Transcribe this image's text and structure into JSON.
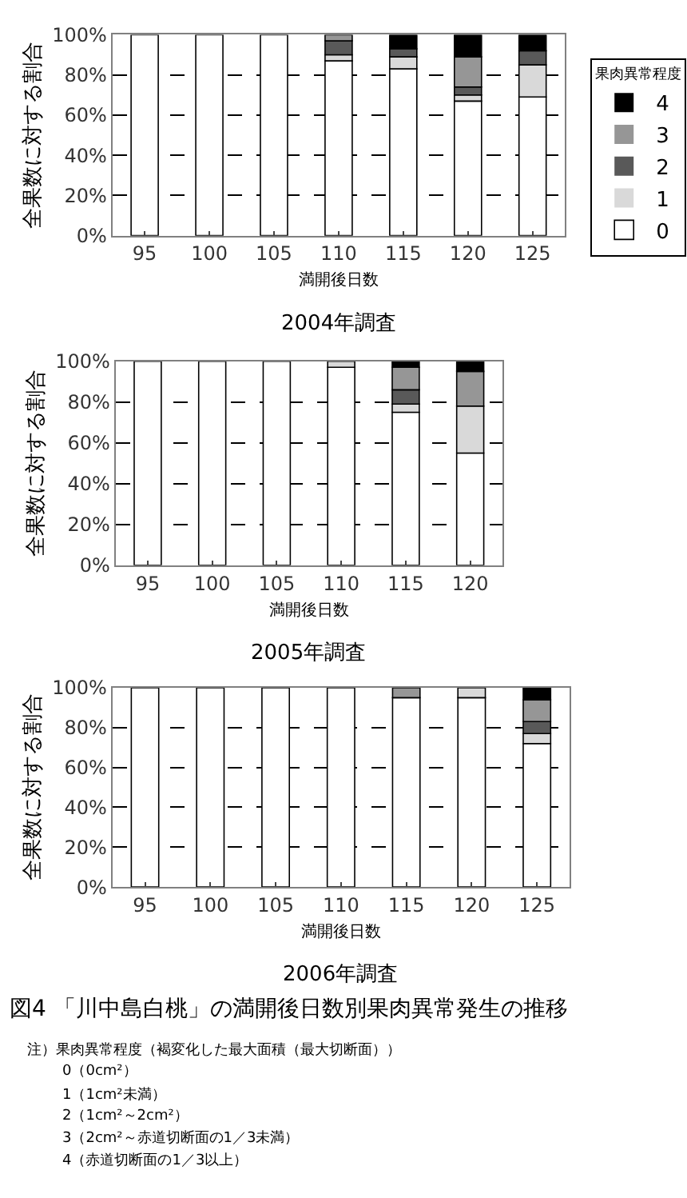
{
  "chart_data": [
    {
      "type": "bar",
      "title": "2004年調査",
      "xlabel": "満開後日数",
      "ylabel": "全果数に対する割合",
      "legend_title": "果肉異常程度",
      "legend": "right",
      "stacked": true,
      "grid": "y",
      "categories": [
        "95",
        "100",
        "105",
        "110",
        "115",
        "120",
        "125"
      ],
      "series": [
        {
          "name": "0",
          "color": "#ffffff",
          "values": [
            100,
            100,
            100,
            87,
            83,
            67,
            69
          ]
        },
        {
          "name": "1",
          "color": "#d9d9d9",
          "values": [
            0,
            0,
            0,
            3,
            6,
            3,
            16
          ]
        },
        {
          "name": "2",
          "color": "#595959",
          "values": [
            0,
            0,
            0,
            7,
            4,
            4,
            7
          ]
        },
        {
          "name": "3",
          "color": "#969696",
          "values": [
            0,
            0,
            0,
            3,
            0,
            15,
            0
          ]
        },
        {
          "name": "4",
          "color": "#000000",
          "values": [
            0,
            0,
            0,
            0,
            7,
            11,
            8
          ]
        }
      ],
      "ylim": [
        0,
        100
      ],
      "yticks": [
        {
          "value": 0,
          "label": "0%"
        },
        {
          "value": 20,
          "label": "20%"
        },
        {
          "value": 40,
          "label": "40%"
        },
        {
          "value": 60,
          "label": "60%"
        },
        {
          "value": 80,
          "label": "80%"
        },
        {
          "value": 100,
          "label": "100%"
        }
      ]
    },
    {
      "type": "bar",
      "title": "2005年調査",
      "xlabel": "満開後日数",
      "ylabel": "全果数に対する割合",
      "stacked": true,
      "grid": "y",
      "categories": [
        "95",
        "100",
        "105",
        "110",
        "115",
        "120"
      ],
      "series": [
        {
          "color": "#ffffff",
          "values": [
            100,
            100,
            100,
            97,
            75,
            55
          ]
        },
        {
          "color": "#d9d9d9",
          "values": [
            0,
            0,
            0,
            3,
            4,
            23
          ]
        },
        {
          "color": "#595959",
          "values": [
            0,
            0,
            0,
            0,
            7,
            0
          ]
        },
        {
          "color": "#969696",
          "values": [
            0,
            0,
            0,
            0,
            11,
            17
          ]
        },
        {
          "color": "#000000",
          "values": [
            0,
            0,
            0,
            0,
            3,
            5
          ]
        }
      ],
      "ylim": [
        0,
        100
      ],
      "yticks": [
        {
          "value": 0,
          "label": "0%"
        },
        {
          "value": 20,
          "label": "20%"
        },
        {
          "value": 40,
          "label": "40%"
        },
        {
          "value": 60,
          "label": "60%"
        },
        {
          "value": 80,
          "label": "80%"
        },
        {
          "value": 100,
          "label": "100%"
        }
      ]
    },
    {
      "type": "bar",
      "title": "2006年調査",
      "xlabel": "満開後日数",
      "ylabel": "全果数に対する割合",
      "stacked": true,
      "grid": "y",
      "categories": [
        "95",
        "100",
        "105",
        "110",
        "115",
        "120",
        "125"
      ],
      "series": [
        {
          "color": "#ffffff",
          "values": [
            100,
            100,
            100,
            100,
            95,
            95,
            72
          ]
        },
        {
          "color": "#d9d9d9",
          "values": [
            0,
            0,
            0,
            0,
            0,
            5,
            5
          ]
        },
        {
          "color": "#595959",
          "values": [
            0,
            0,
            0,
            0,
            0,
            0,
            6
          ]
        },
        {
          "color": "#969696",
          "values": [
            0,
            0,
            0,
            0,
            5,
            0,
            11
          ]
        },
        {
          "color": "#000000",
          "values": [
            0,
            0,
            0,
            0,
            0,
            0,
            6
          ]
        }
      ],
      "ylim": [
        0,
        100
      ],
      "yticks": [
        {
          "value": 0,
          "label": "0%"
        },
        {
          "value": 20,
          "label": "20%"
        },
        {
          "value": 40,
          "label": "40%"
        },
        {
          "value": 60,
          "label": "60%"
        },
        {
          "value": 80,
          "label": "80%"
        },
        {
          "value": 100,
          "label": "100%"
        }
      ],
      "annotations": [
        "図4 「川中島白桃」の満開後日数別果肉異常発生の推移",
        "注）果肉異常程度（褐変化した最大面積（最大切断面））",
        "0（0cm²）",
        "1（1cm²未満）",
        "2（1cm²～2cm²）",
        "3（2cm²～赤道切断面の1／3未満）",
        "4（赤道切断面の1／3以上）"
      ]
    }
  ]
}
